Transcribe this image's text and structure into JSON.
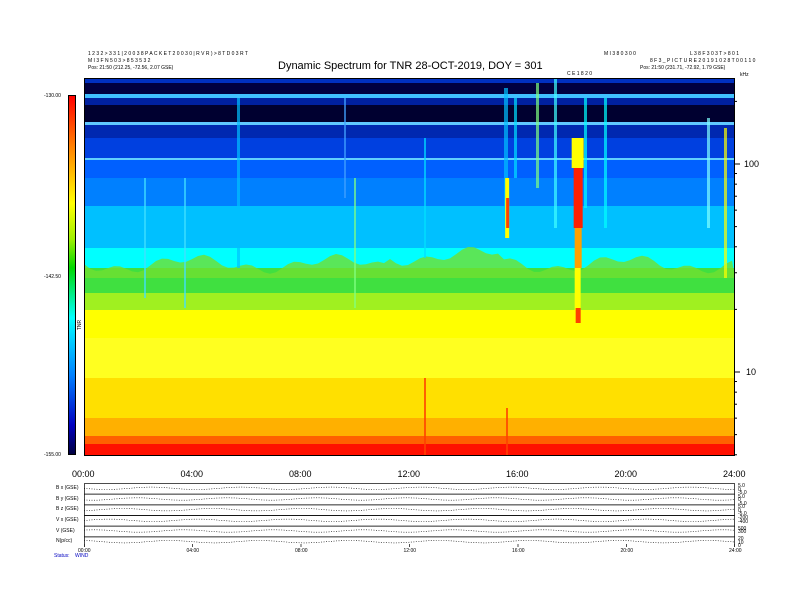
{
  "header": {
    "left_lines": [
      "1 2 3 2 > 3 3 1 | 2 0 0 3 8 P A C K E T 2 0 0 3 0 | R V R ) > 8 T D 0 3 R T",
      "M I 3 F N 5 0 3 > 8 5 3 5 3 2",
      "Pos:    21:50 (212.25, -72.56, 2.07 GSE)"
    ],
    "title": "Dynamic Spectrum for TNR 28-OCT-2019, DOY = 301",
    "center_small_right": "M I 3 8 0 3 0 0",
    "marker_label": "C E 1 8 2 0",
    "right_lines": [
      "L 3 8 F 3 0 3 T > 8 0 1",
      "8 F 3 _ P I C T U R E 2 0 1 9 1 0 2 8 T 0 0 1 1 0",
      "Pos:    21:50 (231.71, -72.92, 1.79 GSE)"
    ]
  },
  "colorbar": {
    "top_label": "-130.00",
    "mid_label": "-142.50",
    "bottom_label": "-155.00",
    "side_label": "TNR"
  },
  "right_axis": {
    "unit_label": "kHz",
    "label_100": "100",
    "label_10": "10"
  },
  "time_axis": {
    "labels": [
      "00:00",
      "04:00",
      "08:00",
      "12:00",
      "16:00",
      "20:00",
      "24:00"
    ]
  },
  "lower_panels": {
    "row_labels": [
      "B x (GSE)",
      "B y (GSE)",
      "B z (GSE)",
      "V x (GSE)",
      "V (GSE)",
      "N(p/cc)"
    ],
    "right_values": [
      [
        "5.0",
        "0",
        "-5.0"
      ],
      [
        "5.0",
        "0",
        "-5.0"
      ],
      [
        "5.0",
        "0",
        "-5.0"
      ],
      [
        "-200",
        "-400"
      ],
      [
        "500",
        "300"
      ],
      [
        "20",
        "10",
        "0"
      ]
    ],
    "time_labels": [
      "00:00",
      "04:00",
      "08:00",
      "12:00",
      "16:00",
      "20:00",
      "24:00"
    ],
    "footer_left": "Status:",
    "footer_left2": "WIND"
  },
  "chart_data": {
    "type": "heatmap",
    "title": "Dynamic Spectrum for TNR 28-OCT-2019, DOY = 301",
    "x_axis": {
      "labels": [
        "00:00",
        "04:00",
        "08:00",
        "12:00",
        "16:00",
        "20:00",
        "24:00"
      ],
      "range_hours": [
        0,
        24
      ]
    },
    "y_axis": {
      "scale": "log",
      "unit": "kHz",
      "labels": [
        100,
        10
      ],
      "range_khz": [
        4,
        250
      ]
    },
    "colorbar": {
      "range": [
        -155.0,
        -130.0
      ],
      "labels": [
        -130.0,
        -142.5,
        -155.0
      ]
    },
    "features": [
      {
        "desc": "type III radio burst",
        "time_hours": 18.2,
        "freq_khz_range": [
          20,
          120
        ],
        "level": -130
      },
      {
        "desc": "burst",
        "time_hours": 15.6,
        "freq_khz_range": [
          40,
          200
        ],
        "level": -132
      }
    ]
  },
  "colors": {
    "high": "#ff0000",
    "mid": "#ffff00",
    "low": "#00ffff",
    "floor": "#000040"
  }
}
